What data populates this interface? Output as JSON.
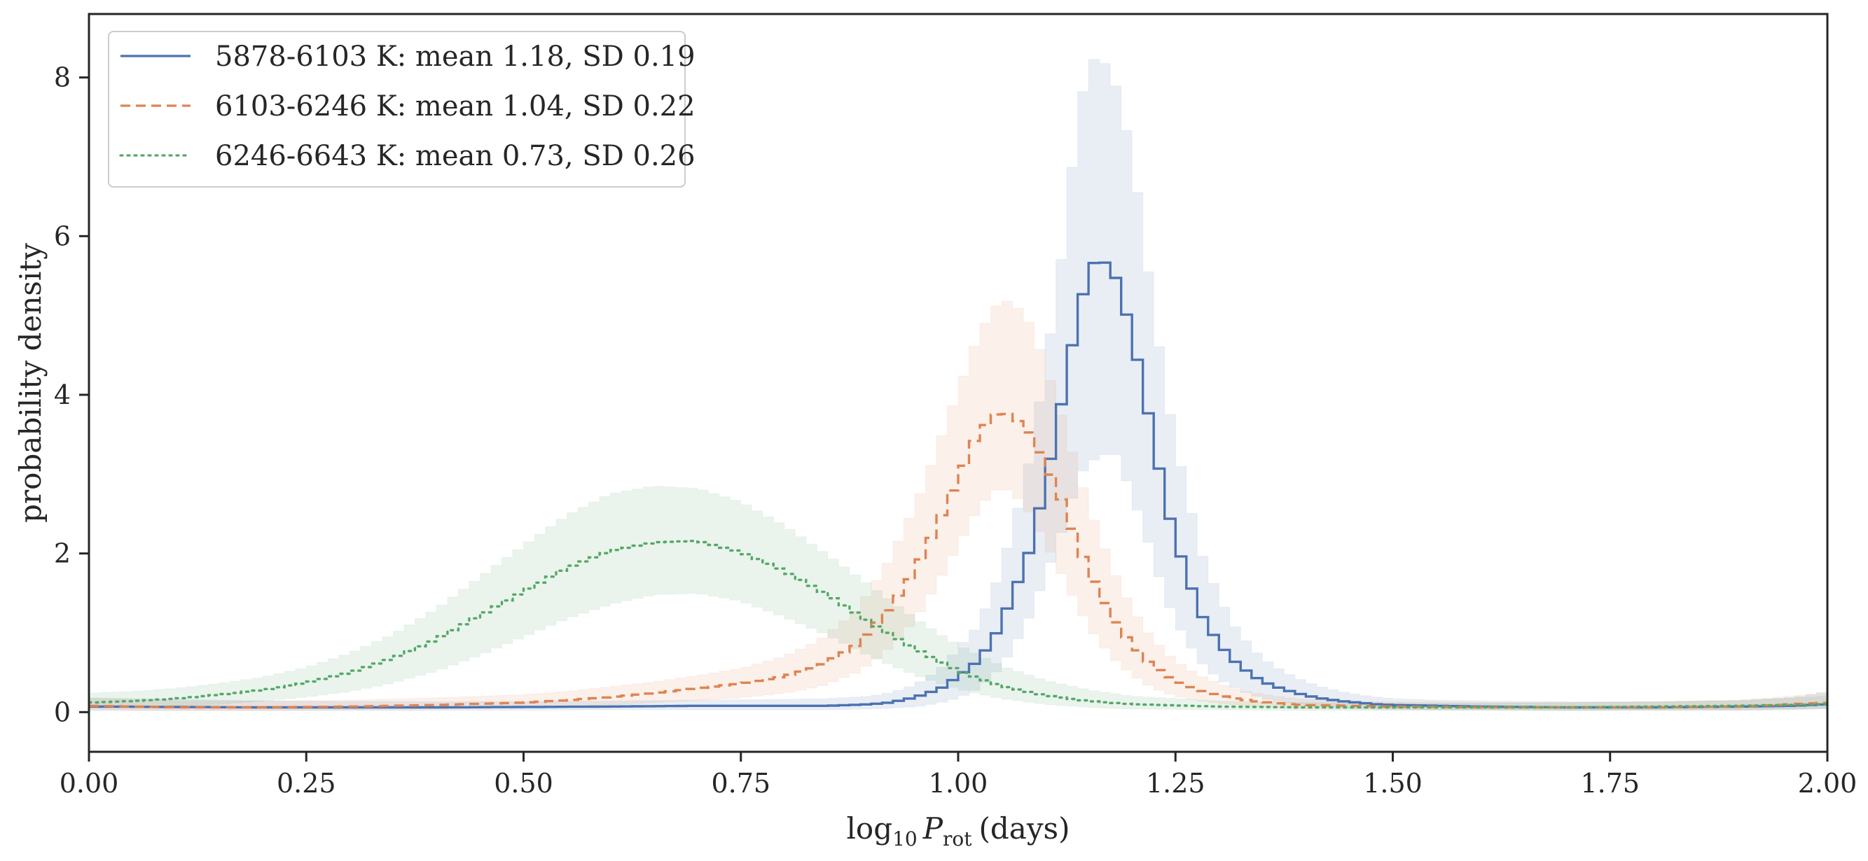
{
  "chart_data": {
    "type": "line",
    "title": "",
    "xlabel": "log10 Prot (days)",
    "xlabel_parts": {
      "pre": "log",
      "sub1": "10",
      "var": "P",
      "sub2": "rot",
      "post": "(days)"
    },
    "ylabel": "probability density",
    "xlim": [
      0,
      2
    ],
    "ylim": [
      -0.5,
      8.8
    ],
    "x_ticks": [
      0,
      0.25,
      0.5,
      0.75,
      1.0,
      1.25,
      1.5,
      1.75,
      2.0
    ],
    "x_tick_labels": [
      "0.00",
      "0.25",
      "0.50",
      "0.75",
      "1.00",
      "1.25",
      "1.50",
      "1.75",
      "2.00"
    ],
    "y_ticks": [
      0,
      2,
      4,
      6,
      8
    ],
    "y_tick_labels": [
      "0",
      "2",
      "4",
      "6",
      "8"
    ],
    "grid": false,
    "legend_position": "top-left",
    "series": [
      {
        "name": "5878-6103 K: mean 1.18, SD 0.19",
        "color": "#4c72b0",
        "linestyle": "solid",
        "x": [
          0.0,
          0.2,
          0.4,
          0.6,
          0.7,
          0.8,
          0.85,
          0.9,
          0.92,
          0.94,
          0.96,
          0.98,
          1.0,
          1.02,
          1.04,
          1.06,
          1.08,
          1.1,
          1.12,
          1.14,
          1.16,
          1.18,
          1.2,
          1.22,
          1.24,
          1.26,
          1.28,
          1.3,
          1.32,
          1.34,
          1.36,
          1.38,
          1.4,
          1.42,
          1.44,
          1.46,
          1.48,
          1.5,
          1.55,
          1.6,
          1.7,
          1.8,
          1.9,
          1.96,
          2.0
        ],
        "y": [
          0.07,
          0.06,
          0.06,
          0.07,
          0.08,
          0.08,
          0.08,
          0.1,
          0.12,
          0.16,
          0.22,
          0.3,
          0.45,
          0.62,
          0.9,
          1.4,
          1.95,
          2.85,
          3.95,
          5.15,
          5.78,
          5.52,
          4.78,
          3.7,
          2.58,
          1.82,
          1.22,
          0.86,
          0.62,
          0.45,
          0.34,
          0.27,
          0.21,
          0.17,
          0.14,
          0.12,
          0.1,
          0.09,
          0.08,
          0.07,
          0.06,
          0.06,
          0.07,
          0.08,
          0.1
        ],
        "band_lower": [
          0.02,
          0.02,
          0.02,
          0.03,
          0.03,
          0.03,
          0.03,
          0.04,
          0.05,
          0.06,
          0.08,
          0.12,
          0.18,
          0.28,
          0.45,
          0.75,
          1.15,
          1.7,
          2.3,
          3.0,
          3.22,
          3.28,
          2.75,
          2.1,
          1.4,
          0.95,
          0.62,
          0.42,
          0.3,
          0.21,
          0.15,
          0.12,
          0.09,
          0.07,
          0.06,
          0.05,
          0.04,
          0.04,
          0.03,
          0.03,
          0.02,
          0.02,
          0.02,
          0.03,
          0.04
        ],
        "band_upper": [
          0.18,
          0.14,
          0.13,
          0.14,
          0.15,
          0.16,
          0.17,
          0.2,
          0.24,
          0.3,
          0.4,
          0.55,
          0.8,
          1.05,
          1.5,
          2.2,
          3.05,
          4.3,
          5.8,
          7.7,
          8.35,
          7.95,
          7.05,
          5.45,
          3.95,
          2.9,
          2.0,
          1.45,
          1.05,
          0.78,
          0.6,
          0.48,
          0.38,
          0.31,
          0.26,
          0.22,
          0.19,
          0.17,
          0.15,
          0.14,
          0.13,
          0.13,
          0.14,
          0.18,
          0.26
        ]
      },
      {
        "name": "6103-6246 K: mean 1.04, SD 0.22",
        "color": "#dd8452",
        "linestyle": "dashed",
        "x": [
          0.0,
          0.1,
          0.2,
          0.3,
          0.4,
          0.5,
          0.55,
          0.6,
          0.65,
          0.7,
          0.75,
          0.8,
          0.84,
          0.88,
          0.9,
          0.92,
          0.94,
          0.96,
          0.98,
          1.0,
          1.02,
          1.04,
          1.06,
          1.08,
          1.1,
          1.12,
          1.14,
          1.16,
          1.18,
          1.2,
          1.22,
          1.24,
          1.26,
          1.28,
          1.3,
          1.32,
          1.34,
          1.36,
          1.38,
          1.4,
          1.45,
          1.5,
          1.6,
          1.7,
          1.8,
          1.9,
          2.0
        ],
        "y": [
          0.08,
          0.06,
          0.06,
          0.07,
          0.09,
          0.12,
          0.15,
          0.19,
          0.24,
          0.3,
          0.36,
          0.45,
          0.58,
          0.82,
          1.05,
          1.3,
          1.6,
          2.0,
          2.45,
          2.95,
          3.45,
          3.75,
          3.76,
          3.55,
          3.15,
          2.65,
          2.05,
          1.55,
          1.15,
          0.85,
          0.62,
          0.46,
          0.35,
          0.27,
          0.21,
          0.17,
          0.14,
          0.12,
          0.1,
          0.09,
          0.08,
          0.07,
          0.06,
          0.06,
          0.06,
          0.07,
          0.12
        ],
        "band_lower": [
          0.03,
          0.02,
          0.02,
          0.03,
          0.04,
          0.05,
          0.07,
          0.09,
          0.12,
          0.15,
          0.18,
          0.24,
          0.32,
          0.48,
          0.62,
          0.8,
          1.02,
          1.32,
          1.7,
          2.1,
          2.5,
          2.8,
          2.8,
          2.55,
          2.15,
          1.72,
          1.28,
          0.92,
          0.66,
          0.47,
          0.33,
          0.24,
          0.18,
          0.14,
          0.11,
          0.09,
          0.07,
          0.06,
          0.05,
          0.04,
          0.04,
          0.03,
          0.03,
          0.03,
          0.03,
          0.03,
          0.05
        ],
        "band_upper": [
          0.18,
          0.14,
          0.14,
          0.15,
          0.18,
          0.22,
          0.26,
          0.32,
          0.38,
          0.46,
          0.55,
          0.7,
          0.9,
          1.25,
          1.55,
          1.9,
          2.35,
          2.85,
          3.45,
          4.05,
          4.65,
          5.1,
          5.2,
          4.95,
          4.4,
          3.7,
          2.95,
          2.3,
          1.75,
          1.3,
          0.98,
          0.74,
          0.57,
          0.45,
          0.36,
          0.29,
          0.24,
          0.21,
          0.18,
          0.16,
          0.14,
          0.13,
          0.12,
          0.12,
          0.13,
          0.15,
          0.24
        ]
      },
      {
        "name": "6246-6643 K: mean 0.73, SD 0.26",
        "color": "#55a868",
        "linestyle": "dotted",
        "x": [
          0.0,
          0.05,
          0.1,
          0.15,
          0.2,
          0.25,
          0.3,
          0.35,
          0.4,
          0.45,
          0.5,
          0.55,
          0.6,
          0.65,
          0.7,
          0.75,
          0.8,
          0.85,
          0.9,
          0.95,
          1.0,
          1.05,
          1.1,
          1.15,
          1.2,
          1.3,
          1.4,
          1.5,
          1.6,
          1.7,
          1.8,
          1.9,
          2.0
        ],
        "y": [
          0.12,
          0.14,
          0.17,
          0.22,
          0.28,
          0.37,
          0.5,
          0.68,
          0.92,
          1.22,
          1.52,
          1.82,
          2.03,
          2.14,
          2.16,
          2.02,
          1.78,
          1.48,
          1.12,
          0.8,
          0.52,
          0.33,
          0.21,
          0.14,
          0.1,
          0.07,
          0.06,
          0.06,
          0.06,
          0.06,
          0.07,
          0.08,
          0.1
        ],
        "band_lower": [
          0.05,
          0.06,
          0.08,
          0.1,
          0.14,
          0.19,
          0.26,
          0.37,
          0.52,
          0.72,
          0.95,
          1.18,
          1.36,
          1.48,
          1.5,
          1.4,
          1.2,
          0.97,
          0.7,
          0.47,
          0.29,
          0.17,
          0.1,
          0.06,
          0.04,
          0.03,
          0.02,
          0.02,
          0.02,
          0.02,
          0.03,
          0.03,
          0.05
        ],
        "band_upper": [
          0.24,
          0.26,
          0.3,
          0.36,
          0.44,
          0.56,
          0.74,
          0.98,
          1.3,
          1.7,
          2.1,
          2.48,
          2.75,
          2.85,
          2.82,
          2.65,
          2.35,
          1.98,
          1.58,
          1.18,
          0.84,
          0.58,
          0.4,
          0.28,
          0.2,
          0.14,
          0.12,
          0.11,
          0.11,
          0.12,
          0.13,
          0.15,
          0.2
        ]
      }
    ]
  }
}
